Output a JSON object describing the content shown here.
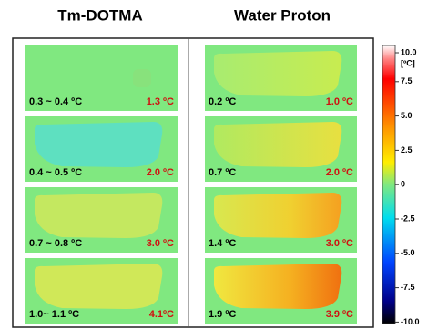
{
  "columns": [
    "Tm-DOTMA",
    "Water Proton"
  ],
  "rows": [
    {
      "tm_range": "0.3 ~ 0.4 ºC",
      "tm_max": "1.3 ºC",
      "wp_range": "0.2  ºC",
      "wp_max": "1.0 ºC"
    },
    {
      "tm_range": "0.4 ~ 0.5 ºC",
      "tm_max": "2.0 ºC",
      "wp_range": "0.7 ºC",
      "wp_max": "2.0 ºC"
    },
    {
      "tm_range": "0.7 ~ 0.8 ºC",
      "tm_max": "3.0 ºC",
      "wp_range": "1.4 ºC",
      "wp_max": "3.0 ºC"
    },
    {
      "tm_range": "1.0~ 1.1 ºC",
      "tm_max": "4.1ºC",
      "wp_range": "1.9 ºC",
      "wp_max": "3.9 ºC"
    }
  ],
  "colorbar": {
    "unit": "[ºC]",
    "ticks": [
      "10.0",
      "7.5",
      "5.0",
      "2.5",
      "0",
      "-2.5",
      "-5.0",
      "-7.5",
      "-10.0"
    ]
  }
}
